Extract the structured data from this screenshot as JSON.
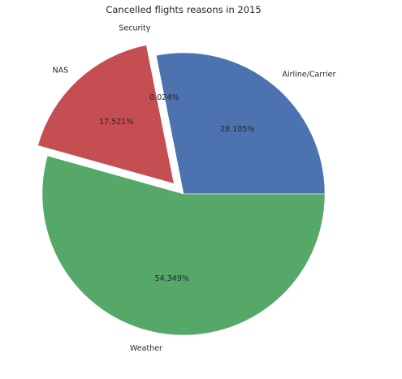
{
  "chart_data": {
    "type": "pie",
    "title": "Cancelled flights reasons in 2015",
    "slices": [
      {
        "label": "Airline/Carrier",
        "value": 28.105,
        "pct_label": "28.105%",
        "color": "#4c72b0",
        "explode": false
      },
      {
        "label": "Security",
        "value": 0.024,
        "pct_label": "0.024%",
        "color": "#8172b2",
        "explode": true
      },
      {
        "label": "NAS",
        "value": 17.521,
        "pct_label": "17.521%",
        "color": "#c44e52",
        "explode": true
      },
      {
        "label": "Weather",
        "value": 54.349,
        "pct_label": "54.349%",
        "color": "#55a868",
        "explode": false
      }
    ],
    "start_angle_deg": 0,
    "direction": "counterclockwise",
    "legend": "none",
    "grid": false
  }
}
